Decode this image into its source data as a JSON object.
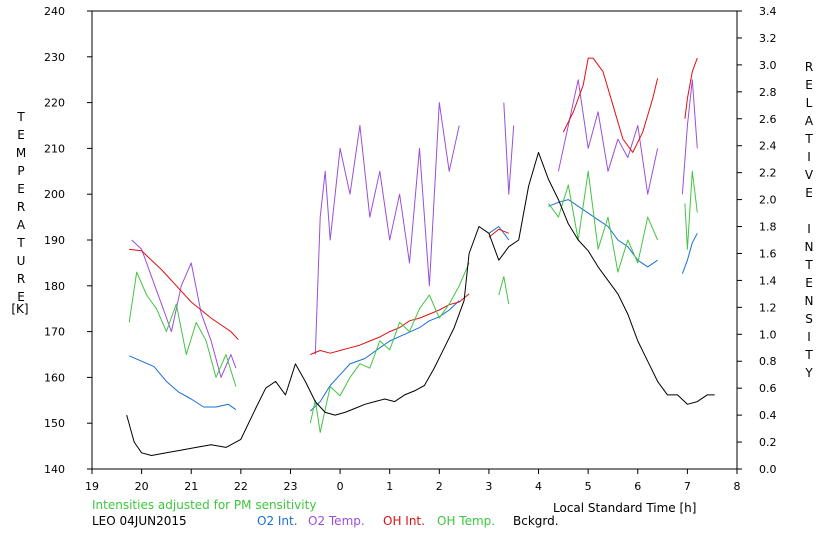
{
  "chart_data": {
    "type": "line",
    "xlabel": "Local Standard Time [h]",
    "ylabel_left": "TEMPERATURE",
    "ylabel_left_unit": "[K]",
    "ylabel_right": "RELATIVE INTENSITY",
    "x_ticks": [
      "19",
      "20",
      "21",
      "22",
      "23",
      "0",
      "1",
      "2",
      "3",
      "4",
      "5",
      "6",
      "7",
      "8"
    ],
    "x_tick_values": [
      19,
      20,
      21,
      22,
      23,
      24,
      25,
      26,
      27,
      28,
      29,
      30,
      31,
      32
    ],
    "y_left_ticks": [
      140,
      150,
      160,
      170,
      180,
      190,
      200,
      210,
      220,
      230,
      240
    ],
    "y_right_ticks": [
      "0.0",
      "0.2",
      "0.4",
      "0.6",
      "0.8",
      "1.0",
      "1.2",
      "1.4",
      "1.6",
      "1.8",
      "2.0",
      "2.2",
      "2.4",
      "2.6",
      "2.8",
      "3.0",
      "3.2",
      "3.4"
    ],
    "xlim": [
      19,
      32
    ],
    "ylim_left": [
      140,
      240
    ],
    "ylim_right": [
      0.0,
      3.4
    ],
    "grid": false,
    "series": [
      {
        "name": "O2 Int.",
        "color": "#1a6fd6",
        "axis": "right",
        "segments": [
          {
            "x": [
              19.75,
              20.0,
              20.25,
              20.5,
              20.75,
              21.0,
              21.25,
              21.5,
              21.75,
              21.9
            ],
            "y": [
              0.84,
              0.8,
              0.76,
              0.65,
              0.57,
              0.52,
              0.46,
              0.46,
              0.48,
              0.44
            ]
          },
          {
            "x": [
              23.4,
              23.6,
              23.8,
              24.0,
              24.2,
              24.5,
              24.8,
              25.0,
              25.3,
              25.6,
              25.8,
              26.0,
              26.2,
              26.4
            ],
            "y": [
              0.43,
              0.5,
              0.62,
              0.7,
              0.78,
              0.82,
              0.9,
              0.95,
              1.0,
              1.05,
              1.1,
              1.13,
              1.18,
              1.25
            ]
          },
          {
            "x": [
              27.0,
              27.2,
              27.4
            ],
            "y": [
              1.75,
              1.8,
              1.7
            ]
          },
          {
            "x": [
              28.2,
              28.4,
              28.6,
              28.8,
              29.0,
              29.2,
              29.4,
              29.6,
              29.8,
              30.0,
              30.2,
              30.4
            ],
            "y": [
              1.95,
              1.98,
              2.0,
              1.95,
              1.9,
              1.85,
              1.8,
              1.7,
              1.65,
              1.55,
              1.5,
              1.55
            ]
          },
          {
            "x": [
              30.9,
              31.0,
              31.1,
              31.2
            ],
            "y": [
              1.45,
              1.55,
              1.68,
              1.75
            ]
          }
        ]
      },
      {
        "name": "O2 Temp.",
        "color": "#9a4fd8",
        "axis": "left",
        "segments": [
          {
            "x": [
              19.8,
              20.0,
              20.2,
              20.4,
              20.6,
              20.8,
              21.0,
              21.2,
              21.4,
              21.6,
              21.8,
              21.9
            ],
            "y": [
              190,
              188,
              182,
              176,
              170,
              180,
              185,
              174,
              168,
              160,
              165,
              162
            ]
          },
          {
            "x": [
              23.5,
              23.6,
              23.7,
              23.8,
              24.0,
              24.2,
              24.4,
              24.6,
              24.8,
              25.0,
              25.2,
              25.4,
              25.6,
              25.8,
              26.0,
              26.2,
              26.4
            ],
            "y": [
              165,
              195,
              205,
              190,
              210,
              200,
              215,
              195,
              205,
              190,
              200,
              185,
              210,
              180,
              220,
              205,
              215
            ]
          },
          {
            "x": [
              27.3,
              27.4,
              27.5
            ],
            "y": [
              220,
              200,
              215
            ]
          },
          {
            "x": [
              28.4,
              28.6,
              28.8,
              29.0,
              29.2,
              29.4,
              29.6,
              29.8,
              30.0,
              30.2,
              30.4
            ],
            "y": [
              205,
              215,
              225,
              210,
              218,
              205,
              212,
              208,
              215,
              200,
              210
            ]
          },
          {
            "x": [
              30.9,
              31.0,
              31.1,
              31.2
            ],
            "y": [
              200,
              215,
              225,
              210
            ]
          }
        ]
      },
      {
        "name": "OH Int.",
        "color": "#e01010",
        "axis": "right",
        "segments": [
          {
            "x": [
              19.75,
              20.0,
              20.2,
              20.4,
              20.6,
              20.8,
              21.0,
              21.2,
              21.4,
              21.6,
              21.8,
              21.95
            ],
            "y": [
              1.63,
              1.62,
              1.55,
              1.48,
              1.4,
              1.32,
              1.24,
              1.18,
              1.12,
              1.07,
              1.02,
              0.96
            ]
          },
          {
            "x": [
              23.4,
              23.6,
              23.8,
              24.0,
              24.2,
              24.4,
              24.6,
              24.8,
              25.0,
              25.2,
              25.4,
              25.6,
              25.8,
              26.0,
              26.2,
              26.4,
              26.6
            ],
            "y": [
              0.85,
              0.88,
              0.86,
              0.88,
              0.9,
              0.92,
              0.95,
              0.98,
              1.02,
              1.05,
              1.1,
              1.12,
              1.15,
              1.18,
              1.22,
              1.24,
              1.3
            ]
          },
          {
            "x": [
              27.0,
              27.2,
              27.4
            ],
            "y": [
              1.72,
              1.78,
              1.75
            ]
          },
          {
            "x": [
              28.5,
              28.7,
              28.9,
              29.0,
              29.1,
              29.3,
              29.5,
              29.7,
              29.9,
              30.1,
              30.3,
              30.4
            ],
            "y": [
              2.5,
              2.65,
              2.85,
              3.05,
              3.05,
              2.95,
              2.7,
              2.45,
              2.35,
              2.5,
              2.75,
              2.9
            ]
          },
          {
            "x": [
              30.95,
              31.0,
              31.1,
              31.2
            ],
            "y": [
              2.6,
              2.75,
              2.95,
              3.05
            ]
          }
        ]
      },
      {
        "name": "OH Temp.",
        "color": "#44c444",
        "axis": "left",
        "segments": [
          {
            "x": [
              19.75,
              19.9,
              20.1,
              20.3,
              20.5,
              20.7,
              20.9,
              21.1,
              21.3,
              21.5,
              21.7,
              21.9
            ],
            "y": [
              172,
              183,
              178,
              175,
              170,
              176,
              165,
              172,
              168,
              160,
              165,
              158
            ]
          },
          {
            "x": [
              23.4,
              23.5,
              23.6,
              23.8,
              24.0,
              24.2,
              24.4,
              24.6,
              24.8,
              25.0,
              25.2,
              25.4,
              25.6,
              25.8,
              26.0,
              26.2,
              26.4,
              26.6
            ],
            "y": [
              150,
              155,
              148,
              158,
              156,
              160,
              163,
              162,
              168,
              166,
              172,
              170,
              175,
              178,
              173,
              176,
              180,
              185
            ]
          },
          {
            "x": [
              27.2,
              27.3,
              27.4
            ],
            "y": [
              178,
              182,
              176
            ]
          },
          {
            "x": [
              28.2,
              28.4,
              28.6,
              28.8,
              29.0,
              29.2,
              29.4,
              29.6,
              29.8,
              30.0,
              30.2,
              30.4
            ],
            "y": [
              198,
              195,
              202,
              190,
              205,
              188,
              195,
              183,
              190,
              185,
              195,
              190
            ]
          },
          {
            "x": [
              30.95,
              31.0,
              31.1,
              31.2
            ],
            "y": [
              198,
              188,
              205,
              196
            ]
          }
        ]
      },
      {
        "name": "Bckgrd.",
        "color": "#000000",
        "axis": "right",
        "segments": [
          {
            "x": [
              19.7,
              19.85,
              20.0,
              20.2,
              20.5,
              20.8,
              21.1,
              21.4,
              21.7,
              22.0,
              22.3,
              22.5,
              22.7,
              22.9,
              23.1,
              23.3,
              23.5,
              23.7,
              23.9,
              24.1,
              24.3,
              24.5,
              24.7,
              24.9,
              25.1,
              25.3,
              25.5,
              25.7,
              25.9,
              26.1,
              26.3,
              26.5,
              26.6,
              26.8,
              27.0,
              27.2,
              27.4,
              27.6,
              27.8,
              28.0,
              28.2,
              28.4,
              28.6,
              28.8,
              29.0,
              29.2,
              29.4,
              29.6,
              29.8,
              30.0,
              30.2,
              30.4,
              30.6,
              30.8,
              31.0,
              31.2,
              31.4,
              31.55
            ],
            "y": [
              0.4,
              0.2,
              0.12,
              0.1,
              0.12,
              0.14,
              0.16,
              0.18,
              0.16,
              0.22,
              0.45,
              0.6,
              0.65,
              0.55,
              0.78,
              0.65,
              0.5,
              0.42,
              0.4,
              0.42,
              0.45,
              0.48,
              0.5,
              0.52,
              0.5,
              0.55,
              0.58,
              0.62,
              0.75,
              0.9,
              1.05,
              1.25,
              1.6,
              1.8,
              1.75,
              1.55,
              1.65,
              1.7,
              2.1,
              2.35,
              2.15,
              2.0,
              1.82,
              1.7,
              1.62,
              1.5,
              1.4,
              1.3,
              1.15,
              0.95,
              0.8,
              0.65,
              0.55,
              0.55,
              0.48,
              0.5,
              0.55,
              0.55
            ]
          }
        ]
      }
    ]
  },
  "legend": {
    "intensity_note": "Intensities adjusted for PM sensitivity",
    "station": "LEO 04JUN2015",
    "o2_int": "O2 Int.",
    "o2_temp": "O2 Temp.",
    "oh_int": "OH Int.",
    "oh_temp": "OH Temp.",
    "bckgrd": "Bckgrd.",
    "note_color": "#3cc83c"
  }
}
